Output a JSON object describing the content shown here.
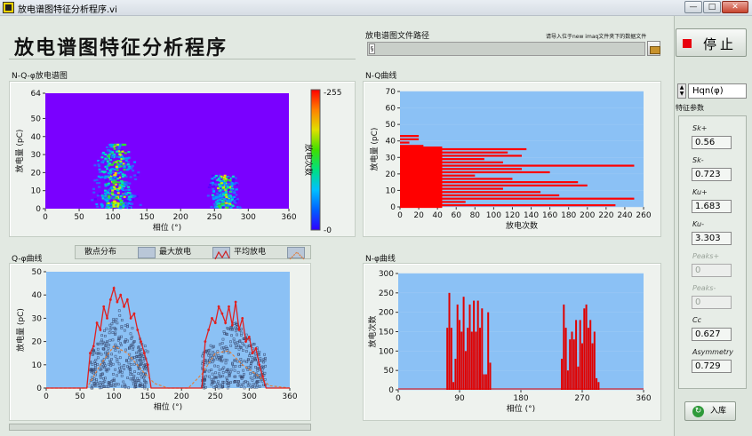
{
  "window": {
    "title": "放电谱图特征分析程序.vi",
    "controls": [
      "—",
      "□",
      "✕"
    ]
  },
  "app": {
    "title": "放电谱图特征分析程序"
  },
  "file": {
    "label": "放电谱图文件路径",
    "hint": "请导入位于new imaq文件夹下的数据文件",
    "value": ""
  },
  "stop_button": {
    "label": "停止"
  },
  "selector": {
    "value": "Hqn(φ)",
    "label": "特征参数"
  },
  "features": [
    {
      "name": "Sk+",
      "value": "0.56",
      "enabled": true
    },
    {
      "name": "Sk-",
      "value": "0.723",
      "enabled": true
    },
    {
      "name": "Ku+",
      "value": "1.683",
      "enabled": true
    },
    {
      "name": "Ku-",
      "value": "3.303",
      "enabled": true
    },
    {
      "name": "Peaks+",
      "value": "0",
      "enabled": false
    },
    {
      "name": "Peaks-",
      "value": "0",
      "enabled": false
    },
    {
      "name": "Cc",
      "value": "0.627",
      "enabled": true
    },
    {
      "name": "Asymmetry",
      "value": "0.729",
      "enabled": true
    }
  ],
  "insert_button": {
    "label": "入库"
  },
  "legend": {
    "items": [
      "散点分布",
      "最大放电",
      "平均放电"
    ]
  },
  "chart_data": [
    {
      "type": "heatmap",
      "title": "N-Q-φ放电谱图",
      "xlabel": "相位 (°)",
      "ylabel": "放电量 (pC)",
      "colorbar_label": "放电次数",
      "xlim": [
        0,
        360
      ],
      "ylim": [
        0,
        64
      ],
      "xticks": [
        0,
        50,
        100,
        150,
        200,
        250,
        300,
        360
      ],
      "yticks": [
        0,
        10,
        20,
        30,
        40,
        50,
        64
      ],
      "colorbar_ticks": [
        "0",
        "255"
      ],
      "clusters": [
        {
          "phase_range": [
            70,
            135
          ],
          "q_range": [
            0,
            35
          ]
        },
        {
          "phase_range": [
            240,
            285
          ],
          "q_range": [
            0,
            18
          ]
        }
      ],
      "colors": {
        "background": "#7a00ff"
      }
    },
    {
      "type": "bar",
      "orientation": "horizontal",
      "title": "N-Q曲线",
      "xlabel": "放电次数",
      "ylabel": "放电量 (pC)",
      "xlim": [
        0,
        260
      ],
      "ylim": [
        0,
        70
      ],
      "xticks": [
        0,
        20,
        40,
        60,
        80,
        100,
        120,
        140,
        160,
        180,
        200,
        220,
        240,
        260
      ],
      "yticks": [
        0,
        10,
        20,
        30,
        40,
        50,
        60,
        70
      ],
      "q": [
        1,
        3,
        5,
        7,
        9,
        11,
        13,
        15,
        17,
        19,
        21,
        23,
        25,
        27,
        29,
        31,
        33,
        35,
        37,
        39,
        41,
        43
      ],
      "counts": [
        230,
        70,
        250,
        170,
        150,
        110,
        200,
        190,
        120,
        80,
        160,
        130,
        250,
        110,
        90,
        130,
        115,
        135,
        25,
        10,
        20,
        20
      ],
      "colors": {
        "bar": "#ff0000",
        "background": "#8bc1f5"
      }
    },
    {
      "type": "line",
      "title": "Q-φ曲线",
      "xlabel": "相位 (°)",
      "ylabel": "放电量 (pC)",
      "xlim": [
        0,
        360
      ],
      "ylim": [
        0,
        50
      ],
      "xticks": [
        0,
        50,
        100,
        150,
        200,
        250,
        300,
        360
      ],
      "yticks": [
        0,
        10,
        20,
        30,
        40,
        50
      ],
      "series": [
        {
          "name": "最大放电",
          "x": [
            0,
            60,
            65,
            70,
            75,
            80,
            85,
            90,
            95,
            100,
            105,
            110,
            115,
            120,
            125,
            130,
            135,
            140,
            145,
            150,
            155,
            230,
            235,
            240,
            245,
            250,
            255,
            260,
            265,
            270,
            275,
            280,
            285,
            290,
            295,
            300,
            305,
            310,
            315,
            320,
            325,
            360
          ],
          "y": [
            0,
            0,
            15,
            18,
            28,
            25,
            35,
            30,
            38,
            43,
            37,
            40,
            35,
            38,
            30,
            32,
            25,
            20,
            15,
            10,
            0,
            0,
            20,
            25,
            30,
            28,
            35,
            32,
            28,
            35,
            27,
            37,
            25,
            30,
            20,
            22,
            15,
            17,
            10,
            5,
            0,
            0
          ]
        },
        {
          "name": "平均放电",
          "x": [
            0,
            60,
            80,
            100,
            120,
            140,
            160,
            180,
            210,
            230,
            250,
            270,
            290,
            310,
            330,
            360
          ],
          "y": [
            0,
            0,
            10,
            18,
            15,
            8,
            2,
            0,
            0,
            6,
            15,
            16,
            10,
            6,
            1,
            0
          ]
        }
      ],
      "colors": {
        "max": "#e02020",
        "mean": "#e08040",
        "background": "#8bc1f5"
      }
    },
    {
      "type": "bar",
      "title": "N-φ曲线",
      "xlabel": "相位 (°)",
      "ylabel": "放电次数",
      "xlim": [
        0,
        360
      ],
      "ylim": [
        0,
        300
      ],
      "xticks": [
        0,
        90,
        180,
        270,
        360
      ],
      "yticks": [
        0,
        50,
        100,
        150,
        200,
        250,
        300
      ],
      "phase": [
        72,
        75,
        78,
        81,
        84,
        87,
        90,
        93,
        96,
        99,
        102,
        105,
        108,
        111,
        114,
        117,
        120,
        123,
        126,
        129,
        132,
        135,
        240,
        243,
        246,
        249,
        252,
        255,
        258,
        261,
        264,
        267,
        270,
        273,
        276,
        279,
        282,
        285,
        288,
        291,
        294
      ],
      "counts": [
        160,
        250,
        160,
        20,
        80,
        220,
        180,
        150,
        240,
        100,
        160,
        220,
        150,
        230,
        150,
        230,
        160,
        210,
        40,
        40,
        200,
        70,
        80,
        220,
        160,
        50,
        130,
        150,
        130,
        180,
        60,
        180,
        120,
        210,
        220,
        160,
        180,
        120,
        150,
        30,
        20
      ],
      "colors": {
        "bar": "#e00000",
        "background": "#8bc1f5"
      }
    }
  ]
}
